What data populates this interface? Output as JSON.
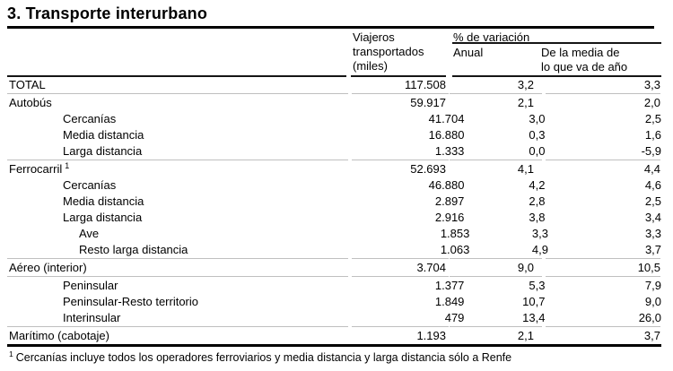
{
  "page": {
    "title": "3. Transporte interurbano",
    "footnote_sup": "1",
    "footnote_text": "Cercanías incluye todos los operadores ferroviarios y media distancia y larga distancia sólo a Renfe"
  },
  "header": {
    "viajeros_lines": [
      "Viajeros",
      "transportados",
      "(miles)"
    ],
    "variacion": "% de variación",
    "anual": "Anual",
    "media_lines": [
      "De la media de",
      "lo que va de año"
    ]
  },
  "table": {
    "rows": [
      {
        "label": "TOTAL",
        "indent": 0,
        "sup": "",
        "viajeros": "117.508",
        "anual": "3,2",
        "media": "3,3",
        "sep_after": true
      },
      {
        "label": "Autobús",
        "indent": 0,
        "sup": "",
        "viajeros": "59.917",
        "anual": "2,1",
        "media": "2,0",
        "sep_after": false
      },
      {
        "label": "Cercanías",
        "indent": 1,
        "sup": "",
        "viajeros": "41.704",
        "anual": "3,0",
        "media": "2,5",
        "sep_after": false
      },
      {
        "label": "Media distancia",
        "indent": 1,
        "sup": "",
        "viajeros": "16.880",
        "anual": "0,3",
        "media": "1,6",
        "sep_after": false
      },
      {
        "label": "Larga distancia",
        "indent": 1,
        "sup": "",
        "viajeros": "1.333",
        "anual": "0,0",
        "media": "-5,9",
        "sep_after": true
      },
      {
        "label": "Ferrocarril",
        "indent": 0,
        "sup": "1",
        "viajeros": "52.693",
        "anual": "4,1",
        "media": "4,4",
        "sep_after": false
      },
      {
        "label": "Cercanías",
        "indent": 1,
        "sup": "",
        "viajeros": "46.880",
        "anual": "4,2",
        "media": "4,6",
        "sep_after": false
      },
      {
        "label": "Media distancia",
        "indent": 1,
        "sup": "",
        "viajeros": "2.897",
        "anual": "2,8",
        "media": "2,5",
        "sep_after": false
      },
      {
        "label": "Larga distancia",
        "indent": 1,
        "sup": "",
        "viajeros": "2.916",
        "anual": "3,8",
        "media": "3,4",
        "sep_after": false
      },
      {
        "label": "Ave",
        "indent": 2,
        "sup": "",
        "viajeros": "1.853",
        "anual": "3,3",
        "media": "3,3",
        "sep_after": false
      },
      {
        "label": "Resto larga distancia",
        "indent": 2,
        "sup": "",
        "viajeros": "1.063",
        "anual": "4,9",
        "media": "3,7",
        "sep_after": true
      },
      {
        "label": "Aéreo (interior)",
        "indent": 0,
        "sup": "",
        "viajeros": "3.704",
        "anual": "9,0",
        "media": "10,5",
        "sep_after": true
      },
      {
        "label": "Peninsular",
        "indent": 1,
        "sup": "",
        "viajeros": "1.377",
        "anual": "5,3",
        "media": "7,9",
        "sep_after": false
      },
      {
        "label": "Peninsular-Resto territorio",
        "indent": 1,
        "sup": "",
        "viajeros": "1.849",
        "anual": "10,7",
        "media": "9,0",
        "sep_after": false
      },
      {
        "label": "Interinsular",
        "indent": 1,
        "sup": "",
        "viajeros": "479",
        "anual": "13,4",
        "media": "26,0",
        "sep_after": true
      },
      {
        "label": "Marítimo (cabotaje)",
        "indent": 0,
        "sup": "",
        "viajeros": "1.193",
        "anual": "2,1",
        "media": "3,7",
        "sep_after": false
      }
    ]
  },
  "colors": {
    "text": "#000000",
    "rule_dark": "#151515",
    "rule_thick": "#000000",
    "rule_gray": "#bfbfbf"
  }
}
